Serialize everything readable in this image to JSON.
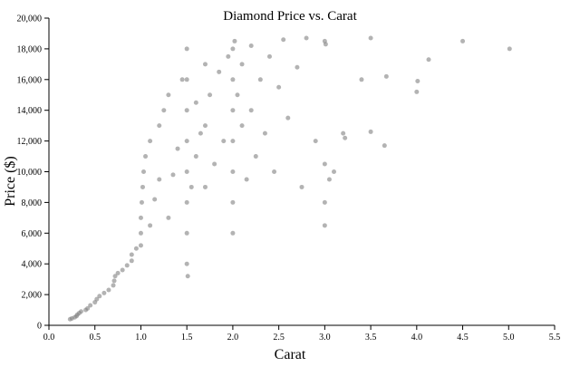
{
  "chart_data": {
    "type": "scatter",
    "title": "Diamond Price vs. Carat",
    "xlabel": "Carat",
    "ylabel": "Price ($)",
    "xlim": [
      0,
      5.5
    ],
    "ylim": [
      0,
      20000
    ],
    "x_ticks": [
      0,
      0.5,
      1,
      1.5,
      2,
      2.5,
      3,
      3.5,
      4,
      4.5,
      5,
      5.5
    ],
    "x_tick_labels": [
      "0.0",
      "0.5",
      "1.0",
      "1.5",
      "2.0",
      "2.5",
      "3.0",
      "3.5",
      "4.0",
      "4.5",
      "5.0",
      "5.5"
    ],
    "y_ticks": [
      0,
      2000,
      4000,
      6000,
      8000,
      10000,
      12000,
      14000,
      16000,
      18000,
      20000
    ],
    "y_tick_labels": [
      "0",
      "2,000",
      "4,000",
      "6,000",
      "8,000",
      "10,000",
      "12,000",
      "14,000",
      "16,000",
      "18,000",
      "20,000"
    ],
    "grid": false,
    "marker_color": "#808080",
    "marker_opacity": 0.6,
    "series": [
      {
        "points": [
          [
            0.23,
            400
          ],
          [
            0.25,
            450
          ],
          [
            0.28,
            520
          ],
          [
            0.3,
            600
          ],
          [
            0.31,
            700
          ],
          [
            0.33,
            800
          ],
          [
            0.35,
            900
          ],
          [
            0.4,
            1000
          ],
          [
            0.42,
            1100
          ],
          [
            0.45,
            1300
          ],
          [
            0.5,
            1500
          ],
          [
            0.52,
            1700
          ],
          [
            0.55,
            1900
          ],
          [
            0.6,
            2100
          ],
          [
            0.65,
            2300
          ],
          [
            0.7,
            2600
          ],
          [
            0.71,
            2900
          ],
          [
            0.72,
            3200
          ],
          [
            0.75,
            3400
          ],
          [
            0.8,
            3600
          ],
          [
            0.85,
            3900
          ],
          [
            0.9,
            4200
          ],
          [
            0.9,
            4600
          ],
          [
            0.95,
            5000
          ],
          [
            1.0,
            5200
          ],
          [
            1.0,
            6000
          ],
          [
            1.0,
            7000
          ],
          [
            1.01,
            8000
          ],
          [
            1.02,
            9000
          ],
          [
            1.03,
            10000
          ],
          [
            1.05,
            11000
          ],
          [
            1.1,
            12000
          ],
          [
            1.1,
            6500
          ],
          [
            1.15,
            8200
          ],
          [
            1.2,
            9500
          ],
          [
            1.2,
            13000
          ],
          [
            1.25,
            14000
          ],
          [
            1.3,
            15000
          ],
          [
            1.3,
            7000
          ],
          [
            1.35,
            9800
          ],
          [
            1.4,
            11500
          ],
          [
            1.45,
            16000
          ],
          [
            1.5,
            4000
          ],
          [
            1.5,
            6000
          ],
          [
            1.5,
            8000
          ],
          [
            1.5,
            10000
          ],
          [
            1.5,
            12000
          ],
          [
            1.5,
            14000
          ],
          [
            1.5,
            16000
          ],
          [
            1.5,
            18000
          ],
          [
            1.51,
            3200
          ],
          [
            1.55,
            9000
          ],
          [
            1.6,
            11000
          ],
          [
            1.6,
            14500
          ],
          [
            1.65,
            12500
          ],
          [
            1.7,
            9000
          ],
          [
            1.7,
            13000
          ],
          [
            1.7,
            17000
          ],
          [
            1.75,
            15000
          ],
          [
            1.8,
            10500
          ],
          [
            1.85,
            16500
          ],
          [
            1.9,
            12000
          ],
          [
            1.95,
            17500
          ],
          [
            2.0,
            6000
          ],
          [
            2.0,
            8000
          ],
          [
            2.0,
            10000
          ],
          [
            2.0,
            12000
          ],
          [
            2.0,
            14000
          ],
          [
            2.0,
            16000
          ],
          [
            2.0,
            18000
          ],
          [
            2.02,
            18500
          ],
          [
            2.05,
            15000
          ],
          [
            2.1,
            13000
          ],
          [
            2.1,
            17000
          ],
          [
            2.15,
            9500
          ],
          [
            2.2,
            14000
          ],
          [
            2.2,
            18200
          ],
          [
            2.25,
            11000
          ],
          [
            2.3,
            16000
          ],
          [
            2.35,
            12500
          ],
          [
            2.4,
            17500
          ],
          [
            2.45,
            10000
          ],
          [
            2.5,
            15500
          ],
          [
            2.55,
            18600
          ],
          [
            2.6,
            13500
          ],
          [
            2.7,
            16800
          ],
          [
            2.75,
            9000
          ],
          [
            2.8,
            18700
          ],
          [
            2.9,
            12000
          ],
          [
            3.0,
            6500
          ],
          [
            3.0,
            8000
          ],
          [
            3.0,
            10500
          ],
          [
            3.0,
            18500
          ],
          [
            3.01,
            18300
          ],
          [
            3.05,
            9500
          ],
          [
            3.1,
            10000
          ],
          [
            3.2,
            12500
          ],
          [
            3.22,
            12200
          ],
          [
            3.4,
            16000
          ],
          [
            3.5,
            18700
          ],
          [
            3.5,
            12600
          ],
          [
            3.65,
            11700
          ],
          [
            3.67,
            16200
          ],
          [
            4.0,
            15200
          ],
          [
            4.01,
            15900
          ],
          [
            4.13,
            17300
          ],
          [
            4.5,
            18500
          ],
          [
            5.01,
            18000
          ]
        ]
      }
    ]
  }
}
